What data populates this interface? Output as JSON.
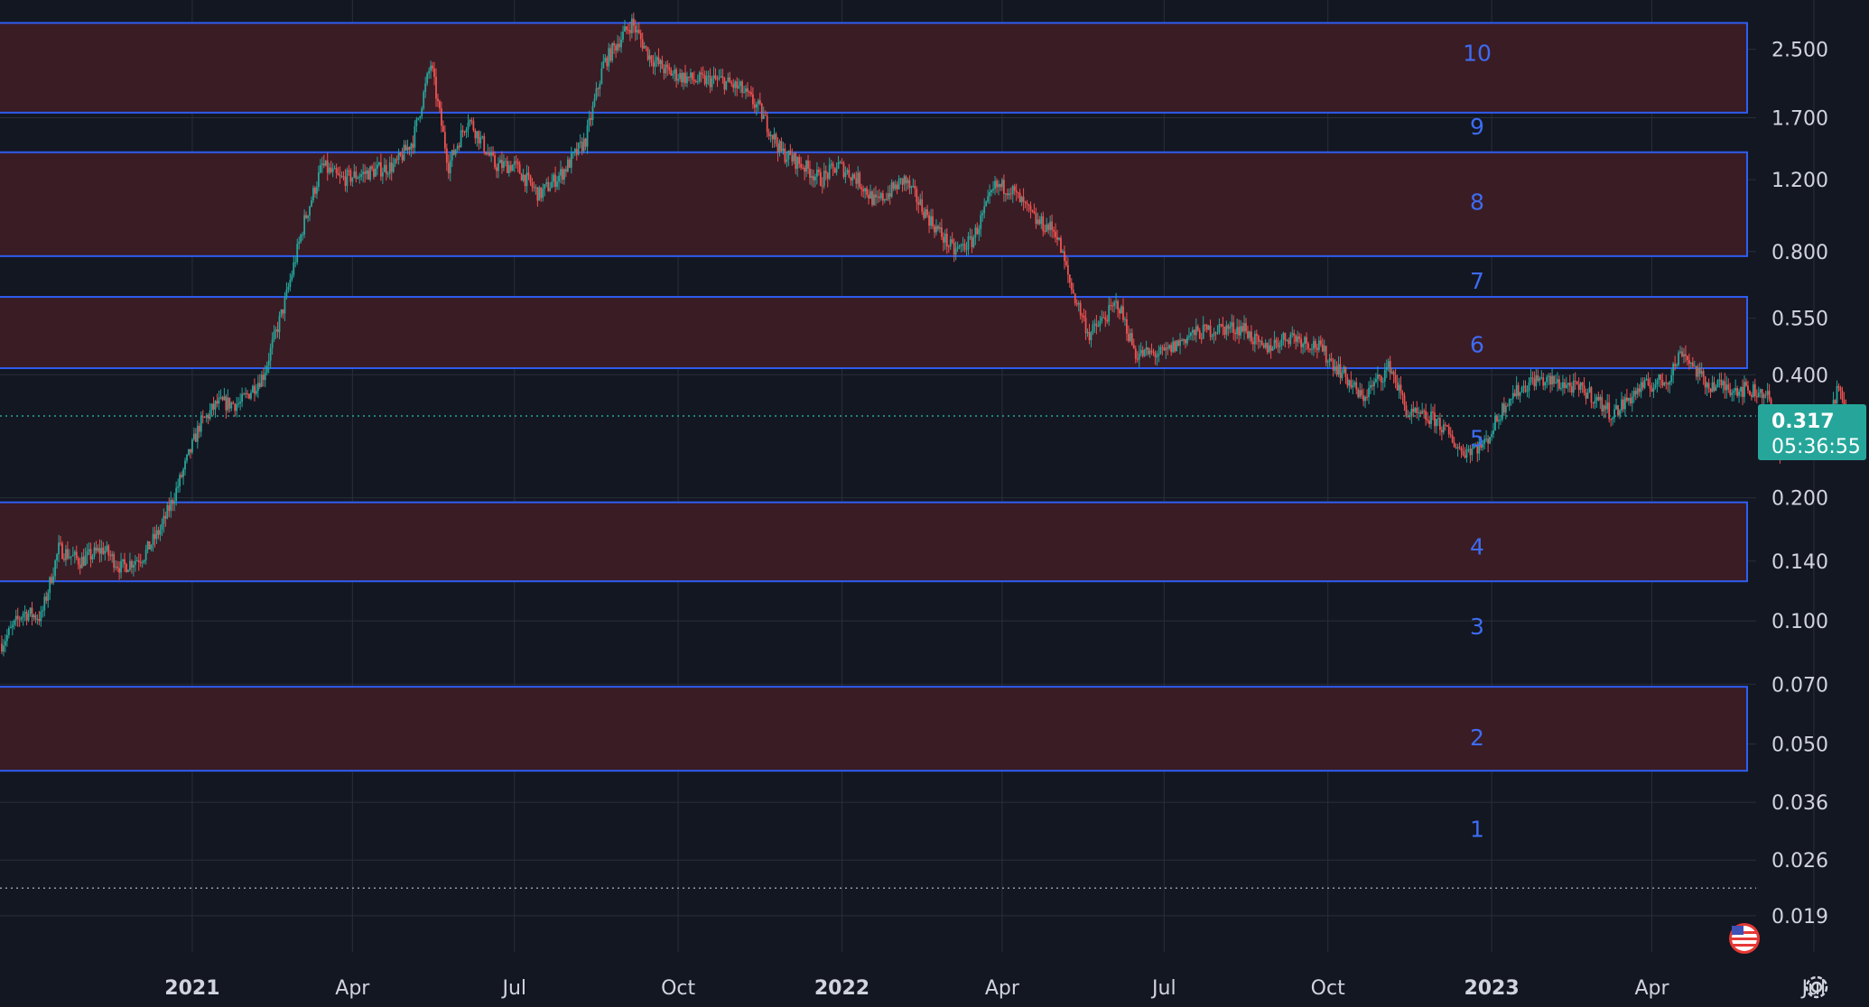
{
  "chart_data": {
    "type": "candlestick",
    "y_scale": "log",
    "ylim": [
      0.0155,
      3.3
    ],
    "xlim": [
      "2020-09-15",
      "2023-08-01"
    ],
    "y_ticks": [
      "2.500",
      "1.700",
      "1.200",
      "0.800",
      "0.550",
      "0.400",
      "0.200",
      "0.140",
      "0.100",
      "0.070",
      "0.050",
      "0.036",
      "0.026",
      "0.019"
    ],
    "x_ticks": [
      {
        "label": "2021",
        "date": "2021-01-01",
        "year": true
      },
      {
        "label": "Apr",
        "date": "2021-04-01",
        "year": false
      },
      {
        "label": "Jul",
        "date": "2021-07-01",
        "year": false
      },
      {
        "label": "Oct",
        "date": "2021-10-01",
        "year": false
      },
      {
        "label": "2022",
        "date": "2022-01-01",
        "year": true
      },
      {
        "label": "Apr",
        "date": "2022-04-01",
        "year": false
      },
      {
        "label": "Jul",
        "date": "2022-07-01",
        "year": false
      },
      {
        "label": "Oct",
        "date": "2022-10-01",
        "year": false
      },
      {
        "label": "2023",
        "date": "2023-01-01",
        "year": true
      },
      {
        "label": "Apr",
        "date": "2023-04-01",
        "year": false
      },
      {
        "label": "Jul",
        "date": "2023-07-01",
        "year": false
      }
    ],
    "price_path": [
      [
        "2020-09-16",
        0.088
      ],
      [
        "2020-09-28",
        0.105
      ],
      [
        "2020-10-08",
        0.102
      ],
      [
        "2020-10-18",
        0.15
      ],
      [
        "2020-10-30",
        0.14
      ],
      [
        "2020-11-12",
        0.15
      ],
      [
        "2020-11-22",
        0.135
      ],
      [
        "2020-12-05",
        0.145
      ],
      [
        "2020-12-15",
        0.17
      ],
      [
        "2020-12-25",
        0.22
      ],
      [
        "2021-01-05",
        0.3
      ],
      [
        "2021-01-15",
        0.34
      ],
      [
        "2021-01-28",
        0.34
      ],
      [
        "2021-02-10",
        0.4
      ],
      [
        "2021-02-22",
        0.6
      ],
      [
        "2021-03-05",
        0.95
      ],
      [
        "2021-03-15",
        1.3
      ],
      [
        "2021-03-25",
        1.2
      ],
      [
        "2021-04-10",
        1.25
      ],
      [
        "2021-04-25",
        1.3
      ],
      [
        "2021-05-05",
        1.5
      ],
      [
        "2021-05-15",
        2.3
      ],
      [
        "2021-05-25",
        1.3
      ],
      [
        "2021-06-05",
        1.7
      ],
      [
        "2021-06-20",
        1.3
      ],
      [
        "2021-07-01",
        1.3
      ],
      [
        "2021-07-15",
        1.1
      ],
      [
        "2021-07-28",
        1.25
      ],
      [
        "2021-08-10",
        1.5
      ],
      [
        "2021-08-20",
        2.3
      ],
      [
        "2021-08-28",
        2.6
      ],
      [
        "2021-09-05",
        2.9
      ],
      [
        "2021-09-15",
        2.4
      ],
      [
        "2021-09-25",
        2.2
      ],
      [
        "2021-10-10",
        2.1
      ],
      [
        "2021-10-25",
        2.1
      ],
      [
        "2021-11-05",
        2.0
      ],
      [
        "2021-11-15",
        1.8
      ],
      [
        "2021-11-28",
        1.4
      ],
      [
        "2021-12-10",
        1.3
      ],
      [
        "2021-12-20",
        1.2
      ],
      [
        "2021-12-30",
        1.3
      ],
      [
        "2022-01-10",
        1.2
      ],
      [
        "2022-01-20",
        1.05
      ],
      [
        "2022-02-05",
        1.2
      ],
      [
        "2022-02-20",
        0.95
      ],
      [
        "2022-03-05",
        0.8
      ],
      [
        "2022-03-15",
        0.85
      ],
      [
        "2022-03-28",
        1.15
      ],
      [
        "2022-04-05",
        1.15
      ],
      [
        "2022-04-20",
        0.95
      ],
      [
        "2022-05-01",
        0.9
      ],
      [
        "2022-05-10",
        0.65
      ],
      [
        "2022-05-20",
        0.5
      ],
      [
        "2022-06-05",
        0.6
      ],
      [
        "2022-06-15",
        0.45
      ],
      [
        "2022-07-01",
        0.45
      ],
      [
        "2022-07-15",
        0.5
      ],
      [
        "2022-08-01",
        0.52
      ],
      [
        "2022-08-15",
        0.52
      ],
      [
        "2022-08-25",
        0.46
      ],
      [
        "2022-09-10",
        0.5
      ],
      [
        "2022-09-25",
        0.47
      ],
      [
        "2022-10-10",
        0.4
      ],
      [
        "2022-10-20",
        0.35
      ],
      [
        "2022-11-05",
        0.42
      ],
      [
        "2022-11-15",
        0.32
      ],
      [
        "2022-12-01",
        0.31
      ],
      [
        "2022-12-15",
        0.26
      ],
      [
        "2022-12-28",
        0.27
      ],
      [
        "2023-01-10",
        0.35
      ],
      [
        "2023-01-25",
        0.39
      ],
      [
        "2023-02-10",
        0.38
      ],
      [
        "2023-02-25",
        0.36
      ],
      [
        "2023-03-10",
        0.32
      ],
      [
        "2023-03-25",
        0.37
      ],
      [
        "2023-04-10",
        0.39
      ],
      [
        "2023-04-18",
        0.46
      ],
      [
        "2023-05-01",
        0.38
      ],
      [
        "2023-05-20",
        0.37
      ],
      [
        "2023-06-05",
        0.36
      ],
      [
        "2023-06-10",
        0.26
      ],
      [
        "2023-06-20",
        0.28
      ],
      [
        "2023-07-01",
        0.3
      ],
      [
        "2023-07-10",
        0.31
      ],
      [
        "2023-07-14",
        0.37
      ],
      [
        "2023-07-20",
        0.317
      ]
    ],
    "zones": [
      {
        "label": "10",
        "low": 1.75,
        "high": 2.9
      },
      {
        "label": "8",
        "low": 0.78,
        "high": 1.4
      },
      {
        "label": "6",
        "low": 0.415,
        "high": 0.62
      },
      {
        "label": "4",
        "low": 0.125,
        "high": 0.195
      },
      {
        "label": "2",
        "low": 0.043,
        "high": 0.069
      }
    ],
    "zone_numbers": [
      {
        "label": "10",
        "value": 2.45
      },
      {
        "label": "9",
        "value": 1.62
      },
      {
        "label": "8",
        "value": 1.06
      },
      {
        "label": "7",
        "value": 0.68
      },
      {
        "label": "6",
        "value": 0.475
      },
      {
        "label": "5",
        "value": 0.28
      },
      {
        "label": "4",
        "value": 0.152
      },
      {
        "label": "3",
        "value": 0.097
      },
      {
        "label": "2",
        "value": 0.052
      },
      {
        "label": "1",
        "value": 0.031
      }
    ],
    "current_price": "0.317",
    "countdown": "05:36:55",
    "dotted_levels": [
      0.317,
      0.0222
    ],
    "colors": {
      "background": "#131722",
      "grid": "#2a2e39",
      "up": "#26a69a",
      "down": "#ef5350",
      "zone_fill": "#3a1c25",
      "zone_border": "#2f5df0",
      "zone_label": "#3d6cf2",
      "price_badge": "#26a69a",
      "axis_text": "#d1d4dc"
    }
  },
  "ui": {
    "settings_icon": "gear-icon",
    "flag_icon": "us-flag-icon"
  }
}
